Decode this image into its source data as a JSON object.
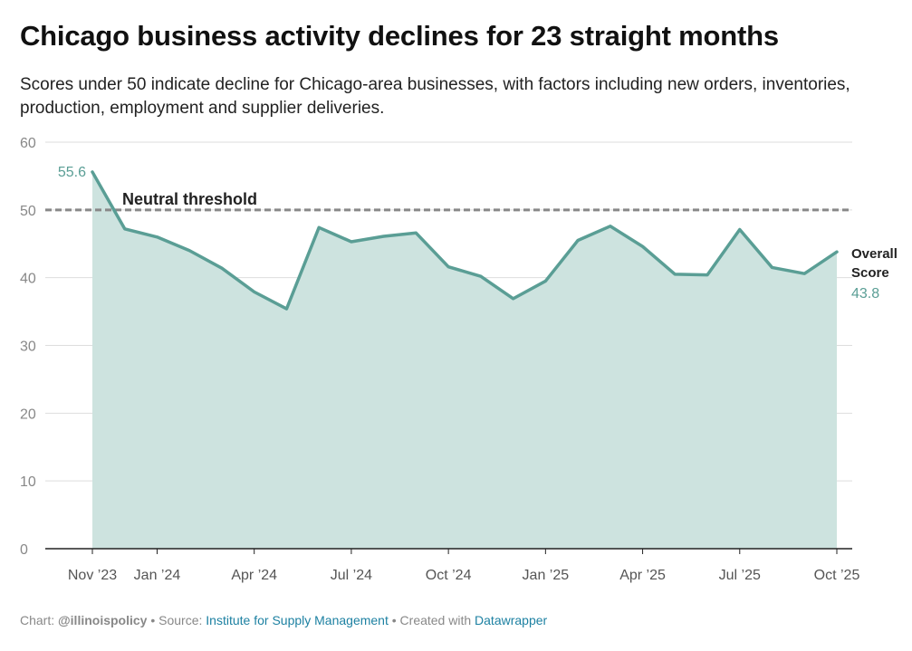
{
  "title": "Chicago business activity declines for 23 straight months",
  "subtitle": "Scores under 50 indicate decline for Chicago-area businesses, with factors including new orders, inventories, production, employment and supplier deliveries.",
  "footer": {
    "chart_prefix": "Chart: ",
    "author": "@illinoispolicy",
    "sep1": " • Source: ",
    "source": "Institute for Supply Management",
    "sep2": " • Created with ",
    "tool": "Datawrapper"
  },
  "colors": {
    "line": "#5a9e95",
    "area": "#cde3df",
    "threshold": "#888888",
    "grid": "#dddddd",
    "tick_text": "#888888",
    "axis_text": "#555555"
  },
  "chart_data": {
    "type": "area",
    "title": "Chicago business activity declines for 23 straight months",
    "xlabel": "",
    "ylabel": "",
    "ylim": [
      0,
      60
    ],
    "yticks": [
      0,
      10,
      20,
      30,
      40,
      50,
      60
    ],
    "grid": true,
    "x": [
      "Nov 2023",
      "Dec 2023",
      "Jan 2024",
      "Feb 2024",
      "Mar 2024",
      "Apr 2024",
      "May 2024",
      "Jun 2024",
      "Jul 2024",
      "Aug 2024",
      "Sep 2024",
      "Oct 2024",
      "Nov 2024",
      "Dec 2024",
      "Jan 2025",
      "Feb 2025",
      "Mar 2025",
      "Apr 2025",
      "May 2025",
      "Jun 2025",
      "Jul 2025",
      "Aug 2025",
      "Sep 2025",
      "Oct 2025"
    ],
    "xtick_labels": [
      {
        "index": 0,
        "label": "Nov ’23"
      },
      {
        "index": 2,
        "label": "Jan ’24"
      },
      {
        "index": 5,
        "label": "Apr ’24"
      },
      {
        "index": 8,
        "label": "Jul ’24"
      },
      {
        "index": 11,
        "label": "Oct ’24"
      },
      {
        "index": 14,
        "label": "Jan ’25"
      },
      {
        "index": 17,
        "label": "Apr ’25"
      },
      {
        "index": 20,
        "label": "Jul ’25"
      },
      {
        "index": 23,
        "label": "Oct ’25"
      }
    ],
    "series": [
      {
        "name": "Overall Score",
        "values": [
          55.6,
          47.2,
          46.0,
          44.0,
          41.4,
          37.9,
          35.4,
          47.4,
          45.3,
          46.1,
          46.6,
          41.6,
          40.2,
          36.9,
          39.5,
          45.5,
          47.6,
          44.6,
          40.5,
          40.4,
          47.1,
          41.5,
          40.6,
          43.8
        ]
      }
    ],
    "threshold": {
      "value": 50,
      "label": "Neutral threshold"
    },
    "annotations": {
      "first_value": "55.6",
      "last_label_line1": "Overall",
      "last_label_line2": "Score",
      "last_value": "43.8"
    }
  }
}
